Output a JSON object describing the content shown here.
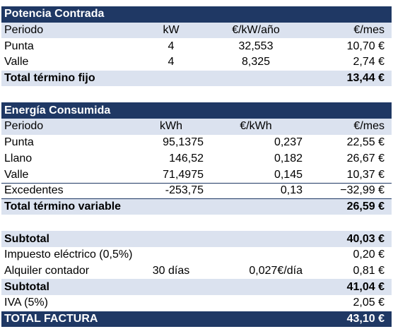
{
  "potencia": {
    "title": "Potencia Contrada",
    "headers": [
      "Periodo",
      "kW",
      "€/kW/año",
      "€/mes"
    ],
    "rows": [
      [
        "Punta",
        "4",
        "32,553",
        "10,70 €"
      ],
      [
        "Valle",
        "4",
        "8,325",
        "2,74 €"
      ]
    ],
    "total_label": "Total término fijo",
    "total_value": "13,44 €"
  },
  "energia": {
    "title": "Energía Consumida",
    "headers": [
      "Periodo",
      "kWh",
      "€/kWh",
      "€/mes"
    ],
    "rows": [
      [
        "Punta",
        "95,1375",
        "0,237",
        "22,55 €"
      ],
      [
        "Llano",
        "146,52",
        "0,182",
        "26,67 €"
      ],
      [
        "Valle",
        "71,4975",
        "0,145",
        "10,37 €"
      ],
      [
        "Excedentes",
        "-253,75",
        "0,13",
        "−32,99 €"
      ]
    ],
    "total_label": "Total término variable",
    "total_value": "26,59 €"
  },
  "resumen": {
    "subtotal1_label": "Subtotal",
    "subtotal1_value": "40,03 €",
    "impuesto_label": "Impuesto eléctrico (0,5%)",
    "impuesto_value": "0,20 €",
    "alquiler_label": "Alquiler contador",
    "alquiler_days": "30 días",
    "alquiler_rate": "0,027€/día",
    "alquiler_value": "0,81 €",
    "subtotal2_label": "Subtotal",
    "subtotal2_value": "41,04 €",
    "iva_label": "IVA (5%)",
    "iva_value": "2,05 €",
    "total_label": "TOTAL FACTURA",
    "total_value": "43,10 €"
  },
  "colors": {
    "navy": "#1f3864",
    "light_blue": "#dbe2ef"
  }
}
